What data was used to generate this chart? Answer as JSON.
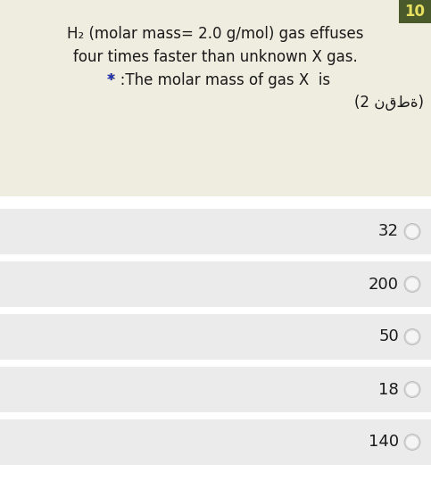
{
  "question_number": "10",
  "question_number_bg": "#4a5a2a",
  "question_number_color": "#e8e060",
  "question_text_line1": "H₂ (molar mass= 2.0 g/mol) gas effuses",
  "question_text_line2": "four times faster than unknown X gas.",
  "question_text_line3_rest": " :The molar mass of gas X  is",
  "question_text_line4": "(2 نقطة)",
  "question_bg": "#efece0",
  "question_text_color": "#1a1a1a",
  "star_color": "#2233bb",
  "options": [
    "32",
    "200",
    "50",
    "18",
    "140"
  ],
  "option_bg": "#ebebeb",
  "option_text_color": "#1a1a1a",
  "circle_edge_color": "#b0b0b0",
  "circle_fill_color": "#d8d8d8",
  "background_color": "#ffffff",
  "fig_width": 4.83,
  "fig_height": 5.48,
  "dpi": 100
}
